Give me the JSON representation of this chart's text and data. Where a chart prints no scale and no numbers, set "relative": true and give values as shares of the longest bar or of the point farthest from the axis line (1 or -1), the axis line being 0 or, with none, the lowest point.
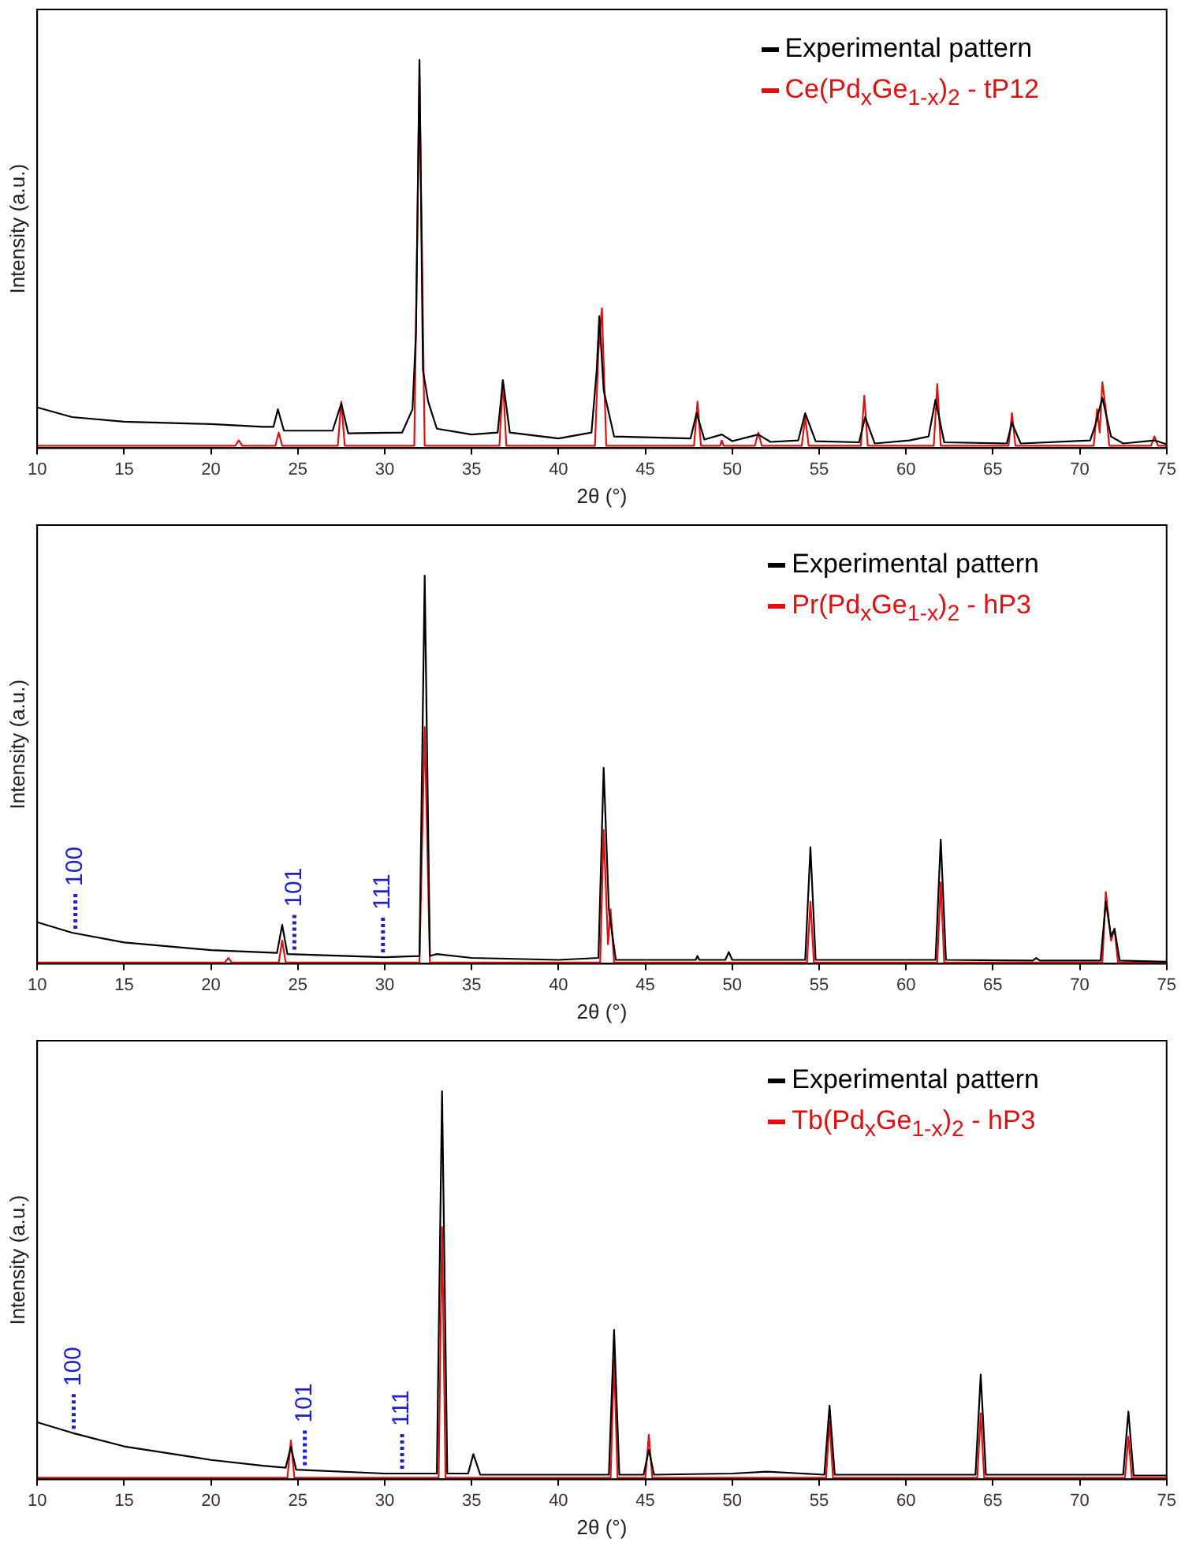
{
  "chart_data": [
    {
      "type": "line",
      "xlabel": "2θ (°)",
      "ylabel": "Intensity (a.u.)",
      "relative": true,
      "xlim": [
        10,
        75
      ],
      "xticks": [
        10,
        15,
        20,
        25,
        30,
        35,
        40,
        45,
        50,
        55,
        60,
        65,
        70,
        75
      ],
      "grid": false,
      "legend": "top right",
      "marker": "none",
      "line_style": "solid",
      "series": [
        {
          "name": "Experimental pattern",
          "color": "#000000",
          "x": [
            10,
            12,
            15,
            20,
            23,
            23.6,
            23.85,
            24.2,
            27,
            27.5,
            27.9,
            31,
            31.6,
            31.8,
            32.0,
            32.2,
            32.5,
            33,
            35,
            36.5,
            36.8,
            37.2,
            40,
            41.9,
            42.2,
            42.35,
            42.6,
            43.2,
            47.6,
            47.95,
            48.4,
            49.4,
            50,
            51.5,
            52.2,
            53.8,
            54.2,
            54.8,
            57.3,
            57.65,
            58.2,
            60.2,
            61.3,
            61.7,
            62.2,
            65.8,
            66.1,
            66.6,
            70.6,
            70.9,
            71.3,
            71.8,
            72.5,
            74.3,
            75
          ],
          "values": [
            0.105,
            0.08,
            0.068,
            0.062,
            0.055,
            0.055,
            0.1,
            0.045,
            0.045,
            0.115,
            0.038,
            0.04,
            0.1,
            0.3,
            1,
            0.2,
            0.12,
            0.05,
            0.035,
            0.04,
            0.175,
            0.04,
            0.025,
            0.04,
            0.2,
            0.34,
            0.15,
            0.03,
            0.025,
            0.09,
            0.022,
            0.035,
            0.018,
            0.035,
            0.016,
            0.02,
            0.09,
            0.018,
            0.015,
            0.08,
            0.012,
            0.02,
            0.03,
            0.125,
            0.015,
            0.012,
            0.065,
            0.012,
            0.02,
            0.06,
            0.13,
            0.03,
            0.012,
            0.02,
            0.01
          ]
        },
        {
          "name": "Ce(Pd$_{x}$Ge$_{1-x}$)$_{2}$ - tP12",
          "color": "#e01010",
          "x": [
            10,
            21.4,
            21.6,
            21.8,
            23.7,
            23.9,
            24.1,
            27.3,
            27.5,
            27.7,
            31.7,
            32.0,
            32.3,
            36.6,
            36.8,
            37.0,
            42.1,
            42.3,
            42.5,
            42.75,
            47.8,
            48.0,
            48.2,
            49.3,
            49.4,
            49.5,
            51.3,
            51.5,
            51.7,
            54.0,
            54.2,
            54.4,
            57.4,
            57.6,
            57.8,
            61.6,
            61.8,
            62.0,
            65.9,
            66.1,
            66.3,
            70.8,
            71.0,
            71.15,
            71.3,
            71.5,
            71.7,
            74.1,
            74.3,
            74.5,
            75
          ],
          "values": [
            0.006,
            0.006,
            0.02,
            0.006,
            0.006,
            0.04,
            0.006,
            0.006,
            0.12,
            0.006,
            0.006,
            0.96,
            0.006,
            0.006,
            0.175,
            0.006,
            0.006,
            0.25,
            0.36,
            0.006,
            0.006,
            0.12,
            0.006,
            0.006,
            0.02,
            0.006,
            0.006,
            0.04,
            0.006,
            0.006,
            0.08,
            0.006,
            0.006,
            0.135,
            0.006,
            0.006,
            0.165,
            0.006,
            0.006,
            0.09,
            0.006,
            0.006,
            0.1,
            0.04,
            0.17,
            0.1,
            0.006,
            0.006,
            0.03,
            0.006,
            0.006
          ]
        }
      ]
    },
    {
      "type": "line",
      "xlabel": "2θ (°)",
      "ylabel": "Intensity (a.u.)",
      "relative": true,
      "xlim": [
        10,
        75
      ],
      "xticks": [
        10,
        15,
        20,
        25,
        30,
        35,
        40,
        45,
        50,
        55,
        60,
        65,
        70,
        75
      ],
      "grid": false,
      "legend": "top right",
      "marker": "none",
      "line_style": "solid",
      "annotations": [
        {
          "text": "100",
          "x": 12.2,
          "y": 0.078
        },
        {
          "text": "101",
          "x": 24.8,
          "y": 0.024
        },
        {
          "text": "111",
          "x": 29.9,
          "y": 0.017
        }
      ],
      "series": [
        {
          "name": "Experimental pattern",
          "color": "#000000",
          "x": [
            10,
            12,
            15,
            20,
            23.8,
            24.1,
            24.4,
            30,
            32.0,
            32.3,
            32.6,
            33,
            35,
            40,
            42.3,
            42.6,
            42.9,
            43.3,
            47.9,
            48,
            48.1,
            49.6,
            49.8,
            50,
            54.2,
            54.5,
            54.8,
            61.7,
            62,
            62.3,
            67.3,
            67.5,
            67.7,
            71.2,
            71.5,
            71.8,
            72,
            72.3,
            75
          ],
          "values": [
            0.107,
            0.08,
            0.055,
            0.035,
            0.028,
            0.1,
            0.025,
            0.017,
            0.02,
            1,
            0.02,
            0.025,
            0.015,
            0.01,
            0.015,
            0.505,
            0.14,
            0.01,
            0.01,
            0.02,
            0.01,
            0.01,
            0.03,
            0.01,
            0.01,
            0.3,
            0.01,
            0.01,
            0.32,
            0.01,
            0.008,
            0.015,
            0.008,
            0.008,
            0.16,
            0.07,
            0.09,
            0.008,
            0.005
          ]
        },
        {
          "name": "Pr(Pd$_{x}$Ge$_{1-x}$)$_{2}$ - hP3",
          "color": "#e01010",
          "x": [
            10,
            20.8,
            21,
            21.2,
            23.9,
            24.1,
            24.3,
            32.0,
            32.3,
            32.6,
            42.4,
            42.6,
            42.85,
            43,
            43.2,
            54.3,
            54.5,
            54.7,
            61.8,
            62,
            62.2,
            71.3,
            71.5,
            71.8,
            72,
            72.2,
            75
          ],
          "values": [
            0.003,
            0.003,
            0.015,
            0.003,
            0.003,
            0.06,
            0.003,
            0.003,
            0.61,
            0.003,
            0.003,
            0.345,
            0.05,
            0.14,
            0.003,
            0.003,
            0.16,
            0.003,
            0.003,
            0.21,
            0.003,
            0.003,
            0.185,
            0.06,
            0.09,
            0.003,
            0.003
          ]
        }
      ]
    },
    {
      "type": "line",
      "xlabel": "2θ (°)",
      "ylabel": "Intensity (a.u.)",
      "relative": true,
      "xlim": [
        10,
        75
      ],
      "xticks": [
        10,
        15,
        20,
        25,
        30,
        35,
        40,
        45,
        50,
        55,
        60,
        65,
        70,
        75
      ],
      "grid": false,
      "legend": "top right",
      "marker": "none",
      "line_style": "solid",
      "annotations": [
        {
          "text": "100",
          "x": 12.1,
          "y": 0.118
        },
        {
          "text": "101",
          "x": 25.4,
          "y": 0.024
        },
        {
          "text": "111",
          "x": 31,
          "y": 0.015
        }
      ],
      "series": [
        {
          "name": "Experimental pattern",
          "color": "#000000",
          "x": [
            10,
            12,
            15,
            20,
            23,
            24.3,
            24.6,
            24.9,
            30,
            33,
            33.3,
            33.6,
            34.8,
            35.1,
            35.5,
            40,
            42.9,
            43.2,
            43.5,
            44.9,
            45.2,
            45.5,
            50,
            52,
            55.3,
            55.6,
            55.9,
            64,
            64.3,
            64.6,
            72.5,
            72.8,
            73.1,
            75
          ],
          "values": [
            0.147,
            0.12,
            0.085,
            0.05,
            0.035,
            0.03,
            0.084,
            0.025,
            0.015,
            0.015,
            1,
            0.015,
            0.015,
            0.065,
            0.012,
            0.012,
            0.012,
            0.385,
            0.012,
            0.012,
            0.076,
            0.012,
            0.015,
            0.02,
            0.012,
            0.19,
            0.012,
            0.012,
            0.27,
            0.012,
            0.012,
            0.175,
            0.01,
            0.01
          ]
        },
        {
          "name": "Tb(Pd$_{x}$Ge$_{1-x}$)$_{2}$ - hP3",
          "color": "#e01010",
          "x": [
            10,
            24.4,
            24.6,
            24.8,
            33.1,
            33.3,
            33.5,
            43,
            43.2,
            43.4,
            45,
            45.2,
            45.4,
            55.4,
            55.6,
            55.8,
            64.1,
            64.3,
            64.5,
            72.6,
            72.8,
            73,
            75
          ],
          "values": [
            0.004,
            0.004,
            0.1,
            0.004,
            0.004,
            0.65,
            0.004,
            0.004,
            0.31,
            0.004,
            0.004,
            0.115,
            0.004,
            0.004,
            0.15,
            0.004,
            0.004,
            0.17,
            0.004,
            0.004,
            0.11,
            0.004,
            0.004
          ]
        }
      ]
    }
  ]
}
